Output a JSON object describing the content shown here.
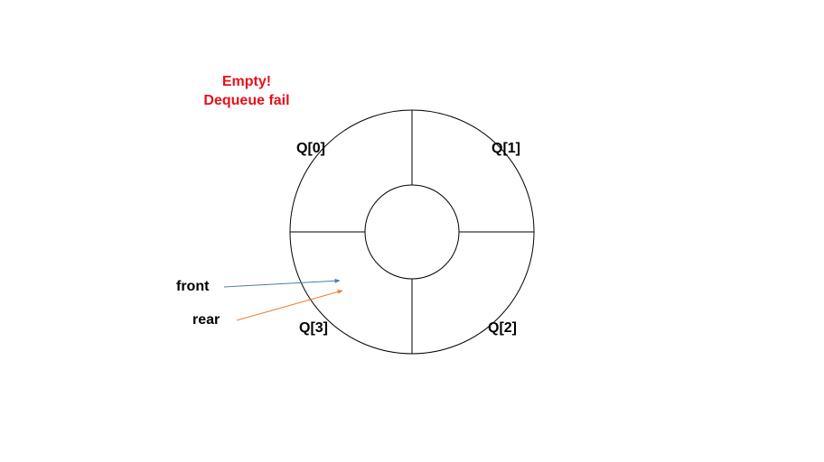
{
  "status": {
    "line1": "Empty!",
    "line2": "Dequeue fail",
    "color": "#e8101a"
  },
  "queue": {
    "slots": [
      {
        "label": "Q[0]"
      },
      {
        "label": "Q[1]"
      },
      {
        "label": "Q[2]"
      },
      {
        "label": "Q[3]"
      }
    ]
  },
  "pointers": {
    "front": {
      "label": "front",
      "color": "#4a7ab0"
    },
    "rear": {
      "label": "rear",
      "color": "#ed7d31"
    }
  }
}
